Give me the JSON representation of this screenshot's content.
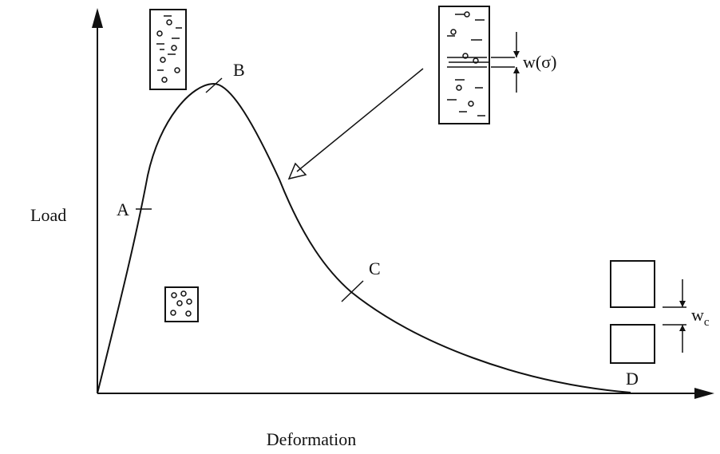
{
  "axes": {
    "y_label": "Load",
    "x_label": "Deformation"
  },
  "points": {
    "A": "A",
    "B": "B",
    "C": "C",
    "D": "D"
  },
  "annotations": {
    "crack_width": "w(σ)",
    "critical_width": {
      "base": "w",
      "sub": "c"
    }
  }
}
